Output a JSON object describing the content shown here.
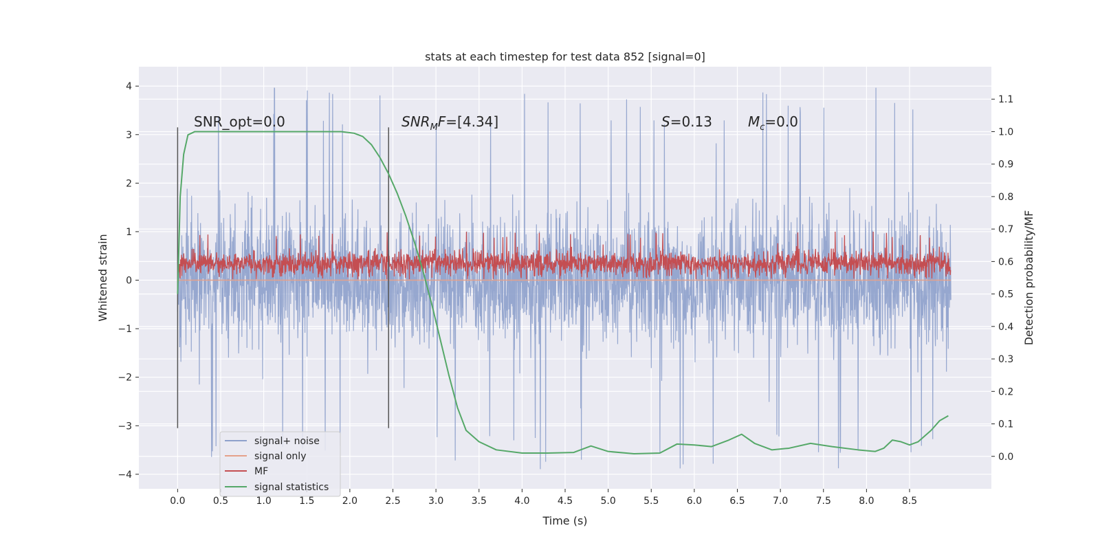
{
  "chart_data": {
    "type": "line",
    "title": "stats at each timestep for test data 852 [signal=0]",
    "xlabel": "Time (s)",
    "ylabel": "Whitened strain",
    "y2label": "Detection probability/MF",
    "xlim": [
      -0.45,
      9.45
    ],
    "ylim": [
      -4.3,
      4.4
    ],
    "y2lim": [
      -0.1,
      1.2
    ],
    "x_ticks": [
      0.0,
      0.5,
      1.0,
      1.5,
      2.0,
      2.5,
      3.0,
      3.5,
      4.0,
      4.5,
      5.0,
      5.5,
      6.0,
      6.5,
      7.0,
      7.5,
      8.0,
      8.5
    ],
    "x_tick_labels": [
      "0.0",
      "0.5",
      "1.0",
      "1.5",
      "2.0",
      "2.5",
      "3.0",
      "3.5",
      "4.0",
      "4.5",
      "5.0",
      "5.5",
      "6.0",
      "6.5",
      "7.0",
      "7.5",
      "8.0",
      "8.5"
    ],
    "y_ticks": [
      -4,
      -3,
      -2,
      -1,
      0,
      1,
      2,
      3,
      4
    ],
    "y_tick_labels": [
      "−4",
      "−3",
      "−2",
      "−1",
      "0",
      "1",
      "2",
      "3",
      "4"
    ],
    "y2_ticks": [
      0.0,
      0.1,
      0.2,
      0.3,
      0.4,
      0.5,
      0.6,
      0.7,
      0.8,
      0.9,
      1.0,
      1.1
    ],
    "y2_tick_labels": [
      "0.0",
      "0.1",
      "0.2",
      "0.3",
      "0.4",
      "0.5",
      "0.6",
      "0.7",
      "0.8",
      "0.9",
      "1.0",
      "1.1"
    ],
    "grid": true,
    "legend_placement": "lower-left",
    "vertical_lines_x": [
      0.0,
      2.45
    ],
    "vertical_lines_ylim": [
      -3.05,
      3.15
    ],
    "annotations": [
      {
        "text": "SNR_opt=0.0",
        "x": 0.2,
        "y": 3.15,
        "italic": false
      },
      {
        "text_italic": "SNR",
        "text_sub": "M",
        "text_italic2": "F",
        "text_rest": "=[4.34]",
        "x": 2.6,
        "y": 3.15
      },
      {
        "text_italic": "S",
        "text_rest": "=0.13",
        "x": 5.6,
        "y": 3.15
      },
      {
        "text_italic": "M",
        "text_sub": "c",
        "text_rest": "=0.0",
        "x": 6.6,
        "y": 3.15
      }
    ],
    "series": [
      {
        "name": "signal+ noise",
        "color": "#8da0cb",
        "axis": "left",
        "style": "dense-noise",
        "x_range": [
          0.0,
          8.98
        ],
        "mean": 0.0,
        "spread": 0.65,
        "typical_max": 2.5,
        "typical_min": -2.6,
        "extreme_max": 4.0,
        "extreme_min": -3.9
      },
      {
        "name": "signal only",
        "color": "#e5a08a",
        "axis": "left",
        "style": "flat",
        "x_range": [
          0.0,
          8.98
        ],
        "value": 0.0
      },
      {
        "name": "MF",
        "color": "#c44e52",
        "axis": "left",
        "style": "dense-noise",
        "x_range": [
          0.0,
          8.98
        ],
        "mean": 0.35,
        "spread": 0.12,
        "typical_max": 0.65,
        "typical_min": 0.05,
        "extreme_max": 1.0,
        "extreme_min": 0.02
      },
      {
        "name": "signal statistics",
        "color": "#55a868",
        "axis": "right",
        "x": [
          0.0,
          0.03,
          0.07,
          0.12,
          0.2,
          0.4,
          0.8,
          1.2,
          1.6,
          1.9,
          2.05,
          2.15,
          2.25,
          2.35,
          2.45,
          2.55,
          2.65,
          2.75,
          2.85,
          2.95,
          3.05,
          3.15,
          3.25,
          3.35,
          3.5,
          3.7,
          4.0,
          4.3,
          4.6,
          4.8,
          5.0,
          5.3,
          5.6,
          5.8,
          6.0,
          6.2,
          6.4,
          6.55,
          6.7,
          6.9,
          7.1,
          7.35,
          7.6,
          7.9,
          8.1,
          8.2,
          8.3,
          8.4,
          8.5,
          8.6,
          8.75,
          8.85,
          8.95
        ],
        "y": [
          0.5,
          0.8,
          0.93,
          0.99,
          1.0,
          1.0,
          1.0,
          1.0,
          1.0,
          1.0,
          0.995,
          0.985,
          0.96,
          0.92,
          0.87,
          0.81,
          0.74,
          0.66,
          0.57,
          0.47,
          0.36,
          0.25,
          0.15,
          0.08,
          0.045,
          0.02,
          0.01,
          0.01,
          0.012,
          0.032,
          0.015,
          0.008,
          0.01,
          0.038,
          0.035,
          0.03,
          0.05,
          0.068,
          0.04,
          0.02,
          0.025,
          0.04,
          0.03,
          0.02,
          0.015,
          0.025,
          0.05,
          0.045,
          0.035,
          0.045,
          0.08,
          0.11,
          0.125
        ]
      }
    ]
  }
}
